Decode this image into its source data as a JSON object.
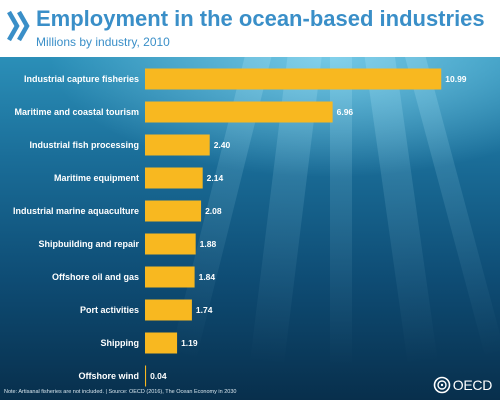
{
  "header": {
    "title": "Employment in the ocean-based industries",
    "subtitle": "Millions by industry, 2010"
  },
  "footer": {
    "note": "Note: Artisanal fisheries are not included. | Source: OECD (2016), The Ocean Economy in 2030",
    "logo_text": "OECD"
  },
  "colors": {
    "bar": "#f8b820",
    "title": "#3a8fc8",
    "label": "#ffffff"
  },
  "chart_data": {
    "type": "bar",
    "orientation": "horizontal",
    "title": "Employment in the ocean-based industries",
    "subtitle": "Millions by industry, 2010",
    "categories": [
      "Industrial capture fisheries",
      "Maritime and coastal tourism",
      "Industrial fish processing",
      "Maritime equipment",
      "Industrial marine aquaculture",
      "Shipbuilding and repair",
      "Offshore oil and gas",
      "Port activities",
      "Shipping",
      "Offshore wind"
    ],
    "values": [
      10.99,
      6.96,
      2.4,
      2.14,
      2.08,
      1.88,
      1.84,
      1.74,
      1.19,
      0.04
    ],
    "value_labels": [
      "10.99",
      "6.96",
      "2.40",
      "2.14",
      "2.08",
      "1.88",
      "1.84",
      "1.74",
      "1.19",
      "0.04"
    ],
    "xlim": [
      0,
      11.5
    ],
    "grid": false,
    "legend": "none"
  }
}
